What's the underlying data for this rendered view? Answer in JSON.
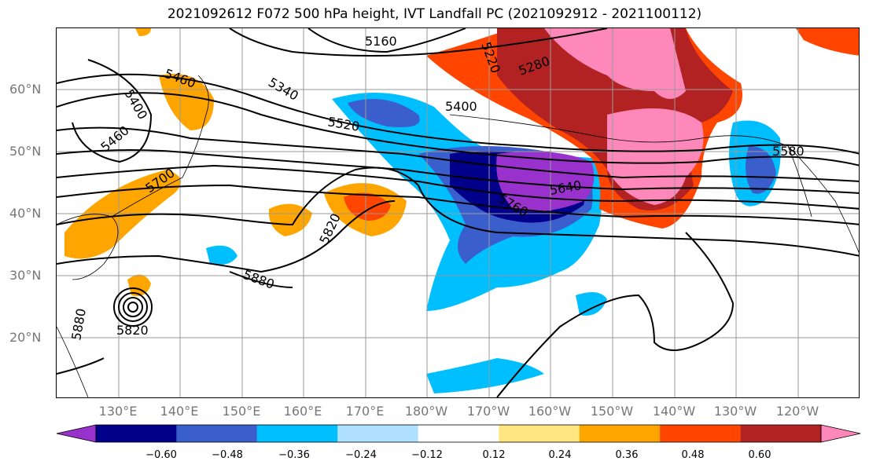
{
  "title": "2021092612 F072 500 hPa height, IVT Landfall PC (2021092912 - 2021100112)",
  "lat_labels": [
    "60°N",
    "50°N",
    "40°N",
    "30°N",
    "20°N"
  ],
  "lon_labels": [
    "130°E",
    "140°E",
    "150°E",
    "160°E",
    "170°E",
    "180°W",
    "170°W",
    "160°W",
    "150°W",
    "140°W",
    "130°W",
    "120°W"
  ],
  "contour_labels": [
    "5160",
    "5220",
    "5280",
    "5400",
    "5460",
    "5460",
    "5400",
    "5340",
    "5520",
    "5700",
    "5760",
    "5640",
    "5580",
    "5820",
    "5880",
    "5880",
    "5820"
  ],
  "colorbar": {
    "ticks": [
      "−0.60",
      "−0.48",
      "−0.36",
      "−0.24",
      "−0.12",
      "0.12",
      "0.24",
      "0.36",
      "0.48",
      "0.60"
    ],
    "colors": [
      "#9932cc",
      "#00008b",
      "#3a5fcd",
      "#00bfff",
      "#b0e0ff",
      "#ffffff",
      "#ffe680",
      "#ffa500",
      "#ff4500",
      "#b22222",
      "#ff88bb"
    ]
  }
}
